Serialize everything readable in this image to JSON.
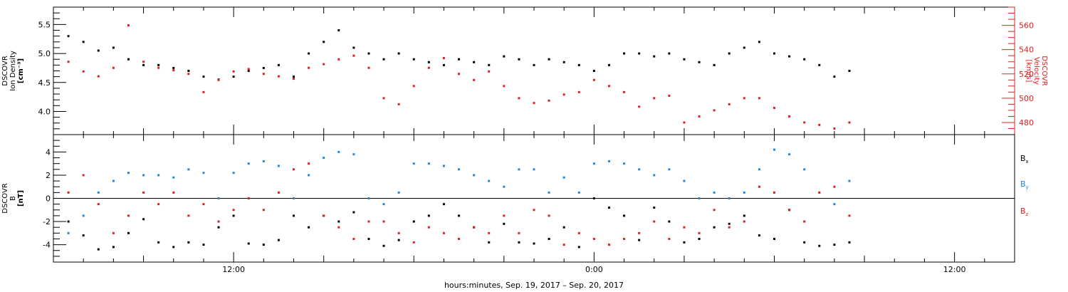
{
  "colors": {
    "density": "#000000",
    "velocity": "#e02020",
    "bx": "#000000",
    "by": "#1f88d8",
    "bz": "#e02020",
    "axis": "#000000"
  },
  "chart_data": [
    {
      "type": "scatter",
      "panel": "top",
      "left_axis": {
        "label_lines": [
          "DSCOVR",
          "Ion Density",
          "[cm⁻³]"
        ],
        "ylim": [
          3.6,
          5.8
        ],
        "ticks": [
          "4.0",
          "4.5",
          "5.0",
          "5.5"
        ]
      },
      "right_axis": {
        "label_lines": [
          "DSCOVR",
          "Velocity",
          "[km/s]"
        ],
        "ylim": [
          470,
          575
        ],
        "ticks": [
          "480",
          "500",
          "520",
          "540",
          "560"
        ]
      },
      "series": [
        {
          "key": "density",
          "axis": "left",
          "x": [
            6.5,
            7,
            7.5,
            8,
            8.5,
            9,
            9.5,
            10,
            10.5,
            11,
            11.5,
            12,
            12.5,
            13,
            13.5,
            14,
            14.5,
            15,
            15.5,
            16,
            16.5,
            17,
            17.5,
            18,
            18.5,
            19,
            19.5,
            20,
            20.5,
            21,
            21.5,
            22,
            22.5,
            23,
            23.5,
            24,
            24.5,
            25,
            25.5,
            26,
            26.5,
            27,
            27.5,
            28,
            28.5,
            29,
            29.5,
            30,
            30.5,
            31,
            31.5,
            32,
            32.5
          ],
          "values": [
            5.3,
            5.2,
            5.05,
            5.1,
            4.9,
            4.8,
            4.8,
            4.75,
            4.7,
            4.6,
            4.55,
            4.6,
            4.7,
            4.75,
            4.8,
            4.6,
            5.0,
            5.2,
            5.4,
            5.1,
            5.0,
            4.9,
            5.0,
            4.9,
            4.85,
            4.8,
            4.9,
            4.85,
            4.8,
            4.95,
            4.9,
            4.8,
            4.9,
            4.85,
            4.8,
            4.7,
            4.8,
            5.0,
            5.0,
            4.95,
            5.0,
            4.9,
            4.85,
            4.8,
            5.0,
            5.1,
            5.2,
            5.0,
            4.95,
            4.9,
            4.8,
            4.6,
            4.7
          ]
        },
        {
          "key": "velocity",
          "axis": "right",
          "x": [
            6.5,
            7,
            7.5,
            8,
            8.5,
            9,
            9.5,
            10,
            10.5,
            11,
            11.5,
            12,
            12.5,
            13,
            13.5,
            14,
            14.5,
            15,
            15.5,
            16,
            16.5,
            17,
            17.5,
            18,
            18.5,
            19,
            19.5,
            20,
            20.5,
            21,
            21.5,
            22,
            22.5,
            23,
            23.5,
            24,
            24.5,
            25,
            25.5,
            26,
            26.5,
            27,
            27.5,
            28,
            28.5,
            29,
            29.5,
            30,
            30.5,
            31,
            31.5,
            32,
            32.5
          ],
          "values": [
            530,
            522,
            518,
            525,
            560,
            530,
            525,
            523,
            520,
            505,
            515,
            522,
            524,
            520,
            518,
            516,
            525,
            528,
            532,
            535,
            525,
            500,
            495,
            510,
            525,
            533,
            520,
            515,
            522,
            510,
            500,
            496,
            498,
            503,
            505,
            515,
            510,
            505,
            493,
            500,
            502,
            480,
            485,
            490,
            495,
            500,
            500,
            492,
            485,
            480,
            478,
            475,
            480
          ]
        }
      ]
    },
    {
      "type": "scatter",
      "panel": "bottom",
      "left_axis": {
        "label_lines": [
          "DSCOVR",
          "B",
          "[nT]"
        ],
        "ylim": [
          -5.5,
          5.5
        ],
        "ticks": [
          "-4",
          "-2",
          "0",
          "2",
          "4"
        ]
      },
      "x_axis": {
        "xlabel": "hours:minutes, Sep. 19, 2017 – Sep. 20, 2017",
        "xlim": [
          6.0,
          38.0
        ],
        "tick_labels": [
          {
            "x": 12,
            "label": "12:00"
          },
          {
            "x": 24,
            "label": "0:00"
          },
          {
            "x": 36,
            "label": "12:00"
          }
        ]
      },
      "series": [
        {
          "key": "bx",
          "name_base": "B",
          "name_sub": "x",
          "x": [
            6.5,
            7,
            7.5,
            8,
            8.5,
            9,
            9.5,
            10,
            10.5,
            11,
            11.5,
            12,
            12.5,
            13,
            13.5,
            14,
            14.5,
            15,
            15.5,
            16,
            16.5,
            17,
            17.5,
            18,
            18.5,
            19,
            19.5,
            20,
            20.5,
            21,
            21.5,
            22,
            22.5,
            23,
            23.5,
            24,
            24.5,
            25,
            25.5,
            26,
            26.5,
            27,
            27.5,
            28,
            28.5,
            29,
            29.5,
            30,
            30.5,
            31,
            31.5,
            32,
            32.5
          ],
          "values": [
            -2.0,
            -3.2,
            -4.4,
            -4.2,
            -3.0,
            -1.8,
            -3.8,
            -4.2,
            -3.8,
            -4.0,
            -2.5,
            -1.5,
            -3.9,
            -4.0,
            -3.6,
            -1.5,
            -2.5,
            -1.5,
            -2.0,
            -1.2,
            -3.5,
            -4.1,
            -3.6,
            -2.0,
            -1.5,
            -0.5,
            -1.5,
            -2.5,
            -3.8,
            -2.2,
            -3.8,
            -3.9,
            -3.5,
            -2.5,
            -4.2,
            0.0,
            -0.8,
            -1.5,
            -3.6,
            -0.8,
            -2.0,
            -3.8,
            -3.5,
            -2.5,
            -2.2,
            -1.5,
            -3.2,
            -3.5,
            -1.0,
            -3.8,
            -4.1,
            -4.0,
            -3.8
          ]
        },
        {
          "key": "by",
          "name_base": "B",
          "name_sub": "y",
          "x": [
            6.5,
            7,
            7.5,
            8,
            8.5,
            9,
            9.5,
            10,
            10.5,
            11,
            11.5,
            12,
            12.5,
            13,
            13.5,
            14,
            14.5,
            15,
            15.5,
            16,
            16.5,
            17,
            17.5,
            18,
            18.5,
            19,
            19.5,
            20,
            20.5,
            21,
            21.5,
            22,
            22.5,
            23,
            23.5,
            24,
            24.5,
            25,
            25.5,
            26,
            26.5,
            27,
            27.5,
            28,
            28.5,
            29,
            29.5,
            30,
            30.5,
            31,
            31.5,
            32,
            32.5
          ],
          "values": [
            -3.0,
            -1.5,
            0.5,
            1.5,
            2.2,
            2.0,
            2.0,
            1.8,
            2.5,
            2.2,
            0.0,
            2.2,
            3.0,
            3.2,
            2.8,
            0.0,
            2.0,
            3.5,
            4.0,
            3.8,
            0.0,
            -0.5,
            0.5,
            3.0,
            3.0,
            2.8,
            2.5,
            2.0,
            1.5,
            1.0,
            2.5,
            2.5,
            0.5,
            1.8,
            0.5,
            3.0,
            3.2,
            3.0,
            2.5,
            2.0,
            2.5,
            1.5,
            0.0,
            0.5,
            0.0,
            0.5,
            2.5,
            4.2,
            3.8,
            2.5,
            0.5,
            -0.5,
            1.5
          ]
        },
        {
          "key": "bz",
          "name_base": "B",
          "name_sub": "z",
          "x": [
            6.5,
            7,
            7.5,
            8,
            8.5,
            9,
            9.5,
            10,
            10.5,
            11,
            11.5,
            12,
            12.5,
            13,
            13.5,
            14,
            14.5,
            15,
            15.5,
            16,
            16.5,
            17,
            17.5,
            18,
            18.5,
            19,
            19.5,
            20,
            20.5,
            21,
            21.5,
            22,
            22.5,
            23,
            23.5,
            24,
            24.5,
            25,
            25.5,
            26,
            26.5,
            27,
            27.5,
            28,
            28.5,
            29,
            29.5,
            30,
            30.5,
            31,
            31.5,
            32,
            32.5
          ],
          "values": [
            0.5,
            2.0,
            -0.5,
            -3.0,
            -1.5,
            0.5,
            -0.5,
            0.5,
            -1.5,
            -0.5,
            -2.0,
            -1.0,
            0.0,
            -1.0,
            0.5,
            2.5,
            3.0,
            -1.5,
            -2.5,
            -3.5,
            -2.0,
            -2.0,
            -3.0,
            -3.8,
            -2.5,
            -3.0,
            -3.5,
            -2.5,
            -3.0,
            -1.5,
            -3.0,
            -1.0,
            -1.5,
            -4.0,
            -3.0,
            -3.5,
            -4.0,
            -3.5,
            -3.0,
            -2.0,
            -3.5,
            -2.5,
            -3.0,
            -1.0,
            -2.5,
            -2.0,
            1.0,
            0.5,
            -1.0,
            -2.0,
            0.5,
            1.0,
            -1.5
          ]
        }
      ]
    }
  ]
}
